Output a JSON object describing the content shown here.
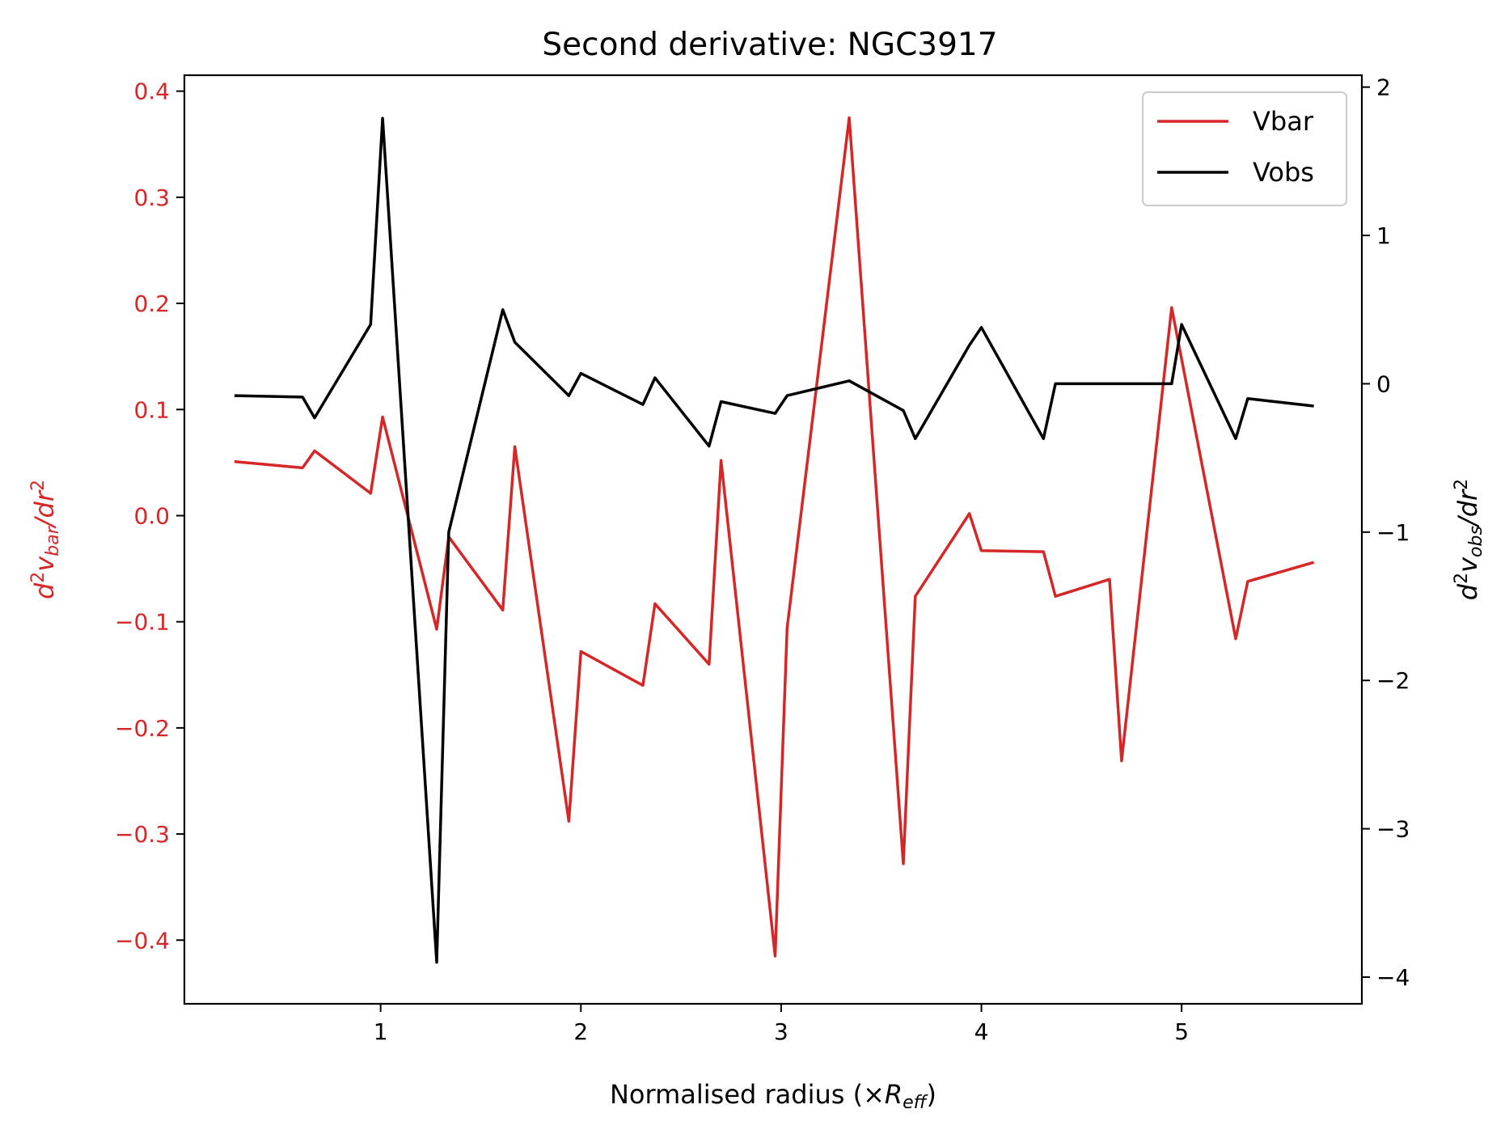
{
  "chart_data": {
    "type": "line",
    "title": "Second derivative: NGC3917",
    "xlabel": {
      "main": "Normalised radius (×",
      "var": "R",
      "sub": "eff",
      "close": ")"
    },
    "ylabel_left": {
      "pre": "d",
      "sup1": "2",
      "var": "v",
      "sub": "bar",
      "mid": "/dr",
      "sup2": "2"
    },
    "ylabel_right": {
      "pre": "d",
      "sup1": "2",
      "var": "v",
      "sub": "obs",
      "mid": "/dr",
      "sup2": "2"
    },
    "xlim": [
      0.02,
      5.9
    ],
    "ylim_left": [
      -0.46,
      0.415
    ],
    "ylim_right": [
      -4.18,
      2.08
    ],
    "xticks": [
      1,
      2,
      3,
      4,
      5
    ],
    "yticks_left": [
      -0.4,
      -0.3,
      -0.2,
      -0.1,
      0.0,
      0.1,
      0.2,
      0.3,
      0.4
    ],
    "yticks_left_labels": [
      "−0.4",
      "−0.3",
      "−0.2",
      "−0.1",
      "0.0",
      "0.1",
      "0.2",
      "0.3",
      "0.4"
    ],
    "yticks_right": [
      -4,
      -3,
      -2,
      -1,
      0,
      1,
      2
    ],
    "yticks_right_labels": [
      "−4",
      "−3",
      "−2",
      "−1",
      "0",
      "1",
      "2"
    ],
    "legend_position": "top-right",
    "colors": {
      "vbar": "#d62728",
      "vobs": "#000000",
      "left_axis": "#d62728",
      "right_axis": "#000000"
    },
    "series": [
      {
        "name": "Vbar",
        "axis": "left",
        "x": [
          0.27,
          0.61,
          0.67,
          0.95,
          1.01,
          1.28,
          1.34,
          1.61,
          1.67,
          1.94,
          2.0,
          2.31,
          2.37,
          2.64,
          2.7,
          2.97,
          3.03,
          3.34,
          3.61,
          3.67,
          3.94,
          4.0,
          4.31,
          4.37,
          4.64,
          4.7,
          4.95,
          5.27,
          5.33,
          5.66
        ],
        "y": [
          0.051,
          0.045,
          0.061,
          0.021,
          0.093,
          -0.107,
          -0.02,
          -0.089,
          0.065,
          -0.288,
          -0.128,
          -0.16,
          -0.083,
          -0.14,
          0.052,
          -0.415,
          -0.106,
          0.375,
          -0.328,
          -0.076,
          0.002,
          -0.033,
          -0.034,
          -0.076,
          -0.06,
          -0.231,
          0.196,
          -0.116,
          -0.062,
          -0.044
        ]
      },
      {
        "name": "Vobs",
        "axis": "right",
        "x": [
          0.27,
          0.61,
          0.67,
          0.95,
          1.01,
          1.28,
          1.34,
          1.61,
          1.67,
          1.94,
          2.0,
          2.31,
          2.37,
          2.64,
          2.7,
          2.97,
          3.03,
          3.34,
          3.61,
          3.67,
          3.94,
          4.0,
          4.31,
          4.37,
          4.64,
          4.7,
          4.95,
          5.0,
          5.27,
          5.33,
          5.66
        ],
        "y": [
          -0.08,
          -0.09,
          -0.23,
          0.4,
          1.79,
          -3.9,
          -1.0,
          0.5,
          0.28,
          -0.08,
          0.07,
          -0.14,
          0.04,
          -0.42,
          -0.12,
          -0.2,
          -0.08,
          0.02,
          -0.18,
          -0.37,
          0.26,
          0.38,
          -0.37,
          0.0,
          0.0,
          0.0,
          0.0,
          0.4,
          -0.37,
          -0.1,
          -0.15
        ]
      }
    ]
  }
}
